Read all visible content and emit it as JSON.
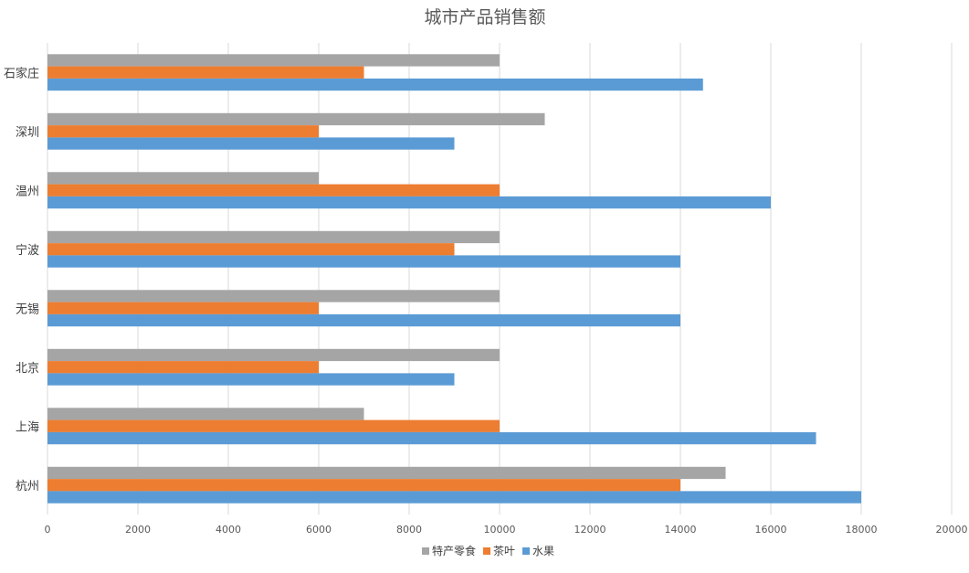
{
  "chart_data": {
    "type": "bar",
    "orientation": "horizontal",
    "title": "城市产品销售额",
    "xlabel": "",
    "ylabel": "",
    "categories": [
      "杭州",
      "上海",
      "北京",
      "无锡",
      "宁波",
      "温州",
      "深圳",
      "石家庄"
    ],
    "series": [
      {
        "name": "水果",
        "color": "#5B9BD5",
        "values": [
          18000,
          17000,
          9000,
          14000,
          14000,
          16000,
          9000,
          14500
        ]
      },
      {
        "name": "茶叶",
        "color": "#ED7D31",
        "values": [
          14000,
          10000,
          6000,
          6000,
          9000,
          10000,
          6000,
          7000
        ]
      },
      {
        "name": "特产零食",
        "color": "#A5A5A5",
        "values": [
          15000,
          7000,
          10000,
          10000,
          10000,
          6000,
          11000,
          10000
        ]
      }
    ],
    "xlim": [
      0,
      20000
    ],
    "xticks": [
      "0",
      "2000",
      "4000",
      "6000",
      "8000",
      "10000",
      "12000",
      "14000",
      "16000",
      "18000",
      "20000"
    ],
    "grid": true,
    "legend_position": "bottom",
    "legend_order": [
      "特产零食",
      "茶叶",
      "水果"
    ]
  }
}
